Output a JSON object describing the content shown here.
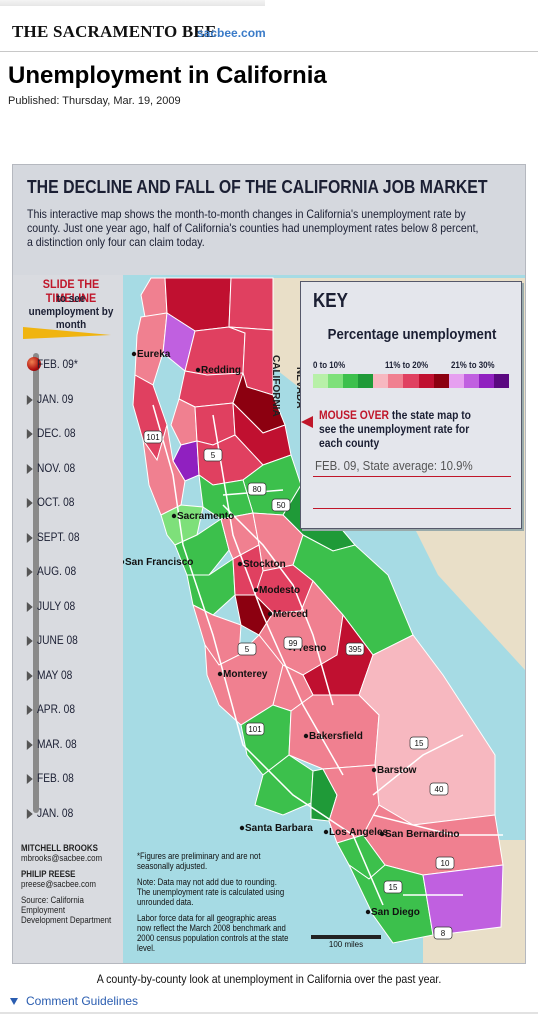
{
  "header": {
    "paper": "THE SACRAMENTO BEE",
    "site": "sacbee.com",
    "title": "Unemployment in California",
    "published": "Published: Thursday, Mar. 19, 2009"
  },
  "graphic": {
    "title": "THE DECLINE AND FALL OF THE CALIFORNIA JOB MARKET",
    "intro": "This interactive map shows the month-to-month changes in California's unemployment rate by county. Just one year ago, half of California's counties had unemployment rates below 8 percent, a distinction only four can claim today.",
    "timeline": {
      "title": "SLIDE THE TIMELINE",
      "subtitle": "to see unemployment by month",
      "months": [
        "FEB. 09*",
        "JAN. 09",
        "DEC. 08",
        "NOV. 08",
        "OCT. 08",
        "SEPT. 08",
        "AUG. 08",
        "JULY 08",
        "JUNE 08",
        "MAY 08",
        "APR. 08",
        "MAR. 08",
        "FEB. 08",
        "JAN. 08"
      ],
      "selected": "FEB. 09*"
    },
    "key": {
      "title": "KEY",
      "subtitle": "Percentage unemployment",
      "ranges": [
        "0 to 10%",
        "11% to 20%",
        "21% to 30%"
      ],
      "colors_green": [
        "#b8f0a8",
        "#7ee07a",
        "#3cc04c",
        "#1f9a38"
      ],
      "colors_red": [
        "#f7b8c0",
        "#f08090",
        "#e04060",
        "#c01030",
        "#8c0010"
      ],
      "colors_purple": [
        "#e6a0f0",
        "#c060e0",
        "#9020c0",
        "#5a0880"
      ],
      "mouseover_hl": "MOUSE OVER",
      "mouseover_rest": "the state map to see the unemployment rate for each county",
      "state_avg": "FEB. 09, State average: 10.9%"
    },
    "map_labels": {
      "eureka": "Eureka",
      "redding": "Redding",
      "sacramento": "Sacramento",
      "san_francisco": "San Francisco",
      "stockton": "Stockton",
      "modesto": "Modesto",
      "merced": "Merced",
      "fresno": "Fresno",
      "monterey": "Monterey",
      "bakersfield": "Bakersfield",
      "barstow": "Barstow",
      "santa_barbara": "Santa Barbara",
      "los_angeles": "Los Angeles",
      "san_bernardino": "San Bernardino",
      "san_diego": "San Diego",
      "california": "CALIFORNIA",
      "nevada": "NEVADA"
    },
    "highways": [
      "101",
      "5",
      "80",
      "50",
      "5",
      "99",
      "395",
      "101",
      "15",
      "40",
      "10",
      "15",
      "8"
    ],
    "credits": {
      "author1": "MITCHELL BROOKS",
      "email1": "mbrooks@sacbee.com",
      "author2": "PHILIP REESE",
      "email2": "preese@sacbee.com",
      "source": "Source: California Employment Development Department"
    },
    "notes": [
      "*Figures are preliminary and are not seasonally adjusted.",
      "Note: Data may not add due to rounding. The unemployment rate is calculated using unrounded data.",
      "Labor force data for all geographic areas now reflect the March 2008 benchmark and 2000 census population controls at the state level."
    ],
    "scale": "100 miles"
  },
  "caption": "A county-by-county look at unemployment in California over the past year.",
  "comment_link": "Comment Guidelines"
}
